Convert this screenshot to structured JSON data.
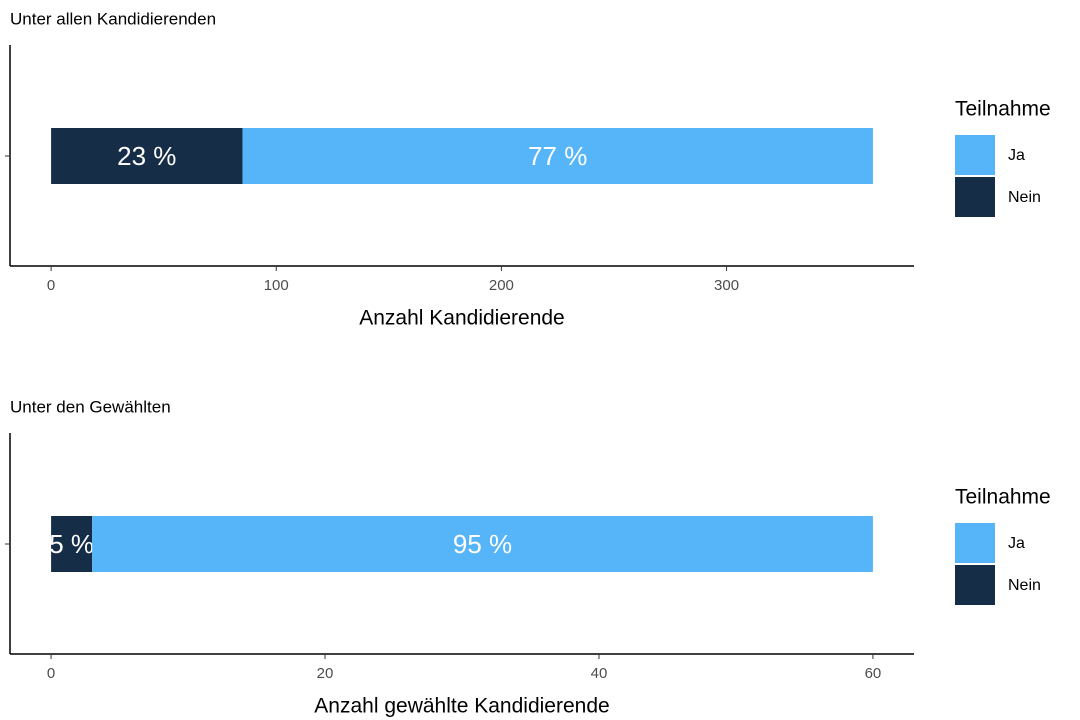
{
  "chart_data": [
    {
      "type": "stacked_bar",
      "orientation": "horizontal",
      "title": "Unter allen Kandidierenden",
      "x_label": "Anzahl Kandidierende",
      "legend_title": "Teilnahme",
      "series": [
        {
          "name": "Ja",
          "color": "#56b4f8",
          "values": [
            280
          ],
          "value_labels": [
            "77 %"
          ]
        },
        {
          "name": "Nein",
          "color": "#162d48",
          "values": [
            85
          ],
          "value_labels": [
            "23 %"
          ]
        }
      ],
      "xlim": [
        -18.25,
        383.25
      ],
      "xticks": [
        0,
        100,
        200,
        300
      ]
    },
    {
      "type": "stacked_bar",
      "orientation": "horizontal",
      "title": "Unter den Gewählten",
      "x_label": "Anzahl gewählte Kandidierende",
      "legend_title": "Teilnahme",
      "series": [
        {
          "name": "Ja",
          "color": "#56b4f8",
          "values": [
            57
          ],
          "value_labels": [
            "95 %"
          ]
        },
        {
          "name": "Nein",
          "color": "#162d48",
          "values": [
            3
          ],
          "value_labels": [
            "5 %"
          ]
        }
      ],
      "xlim": [
        -3,
        63
      ],
      "xticks": [
        0,
        20,
        40,
        60
      ]
    }
  ]
}
